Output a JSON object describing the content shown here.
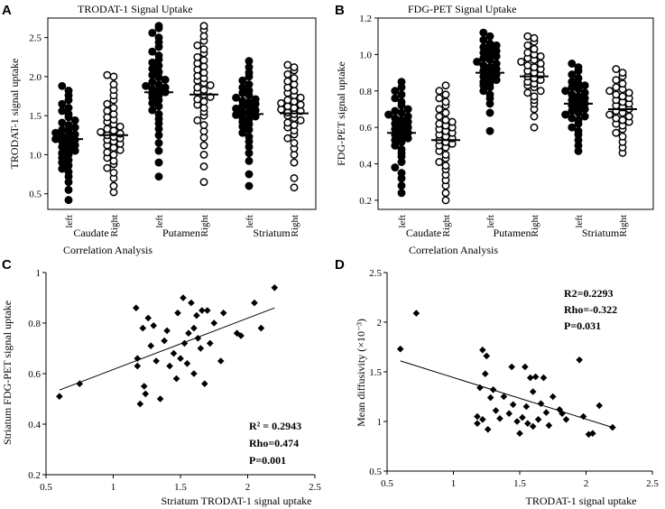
{
  "figure": {
    "panels": [
      {
        "letter": "A",
        "title": "TRODAT-1 Signal Uptake"
      },
      {
        "letter": "B",
        "title": "FDG-PET Signal Uptake"
      },
      {
        "letter": "C",
        "title": "Correlation Analysis"
      },
      {
        "letter": "D",
        "title": "Correlation Analysis"
      }
    ]
  },
  "chart_data": [
    {
      "id": "A",
      "type": "scatter",
      "subtype": "strip",
      "title": "TRODAT-1 Signal Uptake",
      "ylabel": "TRODAT-1 signal uptake",
      "xlabel": "",
      "ylim": [
        0.3,
        2.75
      ],
      "yticks": [
        0.5,
        1.0,
        1.5,
        2.0,
        2.5
      ],
      "ytick_labels": [
        "0.5",
        "1.0",
        "1.5",
        "2.0",
        "2.5"
      ],
      "categories": [
        "left",
        "Right",
        "left",
        "Right",
        "left",
        "Right"
      ],
      "groups": [
        "Caudate",
        "Putamen",
        "Striatum"
      ],
      "series": [
        {
          "name": "Caudate left",
          "filled": true,
          "mean": 1.2,
          "values": [
            0.42,
            0.55,
            0.65,
            0.72,
            0.78,
            0.82,
            0.86,
            0.9,
            0.93,
            0.96,
            1.0,
            1.02,
            1.05,
            1.07,
            1.1,
            1.12,
            1.15,
            1.17,
            1.19,
            1.2,
            1.22,
            1.24,
            1.26,
            1.28,
            1.3,
            1.32,
            1.35,
            1.38,
            1.41,
            1.44,
            1.48,
            1.52,
            1.56,
            1.6,
            1.65,
            1.7,
            1.76,
            1.82,
            1.88
          ]
        },
        {
          "name": "Caudate Right",
          "filled": false,
          "mean": 1.25,
          "values": [
            0.52,
            0.6,
            0.7,
            0.77,
            0.83,
            0.88,
            0.92,
            0.96,
            1.0,
            1.03,
            1.06,
            1.09,
            1.12,
            1.14,
            1.17,
            1.19,
            1.21,
            1.23,
            1.25,
            1.27,
            1.29,
            1.31,
            1.33,
            1.36,
            1.39,
            1.42,
            1.45,
            1.48,
            1.52,
            1.56,
            1.6,
            1.65,
            1.7,
            1.76,
            1.83,
            1.9,
            2.0,
            2.02
          ]
        },
        {
          "name": "Putamen left",
          "filled": true,
          "mean": 1.8,
          "values": [
            0.72,
            0.9,
            1.05,
            1.15,
            1.25,
            1.33,
            1.4,
            1.46,
            1.52,
            1.57,
            1.62,
            1.66,
            1.7,
            1.73,
            1.76,
            1.78,
            1.8,
            1.82,
            1.84,
            1.86,
            1.88,
            1.9,
            1.93,
            1.96,
            1.99,
            2.02,
            2.06,
            2.1,
            2.14,
            2.18,
            2.22,
            2.27,
            2.32,
            2.38,
            2.44,
            2.5,
            2.56,
            2.62,
            2.65
          ]
        },
        {
          "name": "Putamen Right",
          "filled": false,
          "mean": 1.77,
          "values": [
            0.65,
            0.85,
            1.0,
            1.12,
            1.22,
            1.3,
            1.38,
            1.44,
            1.5,
            1.55,
            1.6,
            1.64,
            1.68,
            1.71,
            1.74,
            1.77,
            1.8,
            1.83,
            1.86,
            1.89,
            1.92,
            1.95,
            1.98,
            2.01,
            2.05,
            2.09,
            2.13,
            2.17,
            2.21,
            2.25,
            2.3,
            2.35,
            2.4,
            2.46,
            2.52,
            2.6,
            2.65
          ]
        },
        {
          "name": "Striatum left",
          "filled": true,
          "mean": 1.52,
          "values": [
            0.6,
            0.75,
            0.92,
            1.02,
            1.1,
            1.17,
            1.23,
            1.28,
            1.32,
            1.36,
            1.39,
            1.42,
            1.45,
            1.47,
            1.49,
            1.51,
            1.53,
            1.55,
            1.57,
            1.59,
            1.61,
            1.63,
            1.65,
            1.67,
            1.69,
            1.71,
            1.73,
            1.76,
            1.79,
            1.82,
            1.86,
            1.9,
            1.95,
            2.0,
            2.05,
            2.12,
            2.2
          ]
        },
        {
          "name": "Striatum Right",
          "filled": false,
          "mean": 1.53,
          "values": [
            0.58,
            0.7,
            0.9,
            1.0,
            1.08,
            1.15,
            1.21,
            1.26,
            1.31,
            1.35,
            1.38,
            1.41,
            1.44,
            1.47,
            1.5,
            1.52,
            1.54,
            1.56,
            1.58,
            1.6,
            1.62,
            1.64,
            1.66,
            1.68,
            1.7,
            1.73,
            1.76,
            1.79,
            1.82,
            1.86,
            1.9,
            1.94,
            1.98,
            2.03,
            2.08,
            2.12,
            2.15
          ]
        }
      ]
    },
    {
      "id": "B",
      "type": "scatter",
      "subtype": "strip",
      "title": "FDG-PET Signal Uptake",
      "ylabel": "FDG-PET signal uptake",
      "xlabel": "",
      "ylim": [
        0.15,
        1.2
      ],
      "yticks": [
        0.2,
        0.4,
        0.6,
        0.8,
        1.0,
        1.2
      ],
      "ytick_labels": [
        "0.2",
        "0.4",
        "0.6",
        "0.8",
        "1.0",
        "1.2"
      ],
      "categories": [
        "left",
        "Right",
        "left",
        "Right",
        "left",
        "Right"
      ],
      "groups": [
        "Caudate",
        "Putamen",
        "Striatum"
      ],
      "series": [
        {
          "name": "Caudate left",
          "filled": true,
          "mean": 0.57,
          "values": [
            0.24,
            0.28,
            0.32,
            0.35,
            0.38,
            0.41,
            0.44,
            0.46,
            0.48,
            0.5,
            0.52,
            0.53,
            0.54,
            0.55,
            0.56,
            0.57,
            0.58,
            0.59,
            0.6,
            0.61,
            0.62,
            0.63,
            0.64,
            0.65,
            0.66,
            0.67,
            0.68,
            0.69,
            0.7,
            0.72,
            0.74,
            0.76,
            0.78,
            0.8,
            0.82,
            0.85
          ]
        },
        {
          "name": "Caudate Right",
          "filled": false,
          "mean": 0.53,
          "values": [
            0.2,
            0.24,
            0.28,
            0.31,
            0.34,
            0.37,
            0.39,
            0.41,
            0.43,
            0.45,
            0.47,
            0.49,
            0.5,
            0.51,
            0.52,
            0.53,
            0.54,
            0.55,
            0.56,
            0.57,
            0.58,
            0.59,
            0.6,
            0.61,
            0.62,
            0.63,
            0.64,
            0.66,
            0.68,
            0.7,
            0.72,
            0.74,
            0.76,
            0.78,
            0.8,
            0.83
          ]
        },
        {
          "name": "Putamen left",
          "filled": true,
          "mean": 0.9,
          "values": [
            0.58,
            0.68,
            0.73,
            0.76,
            0.78,
            0.8,
            0.82,
            0.83,
            0.84,
            0.85,
            0.86,
            0.87,
            0.88,
            0.89,
            0.9,
            0.91,
            0.92,
            0.93,
            0.94,
            0.95,
            0.96,
            0.97,
            0.98,
            0.99,
            1.0,
            1.01,
            1.02,
            1.03,
            1.04,
            1.05,
            1.06,
            1.08,
            1.1,
            1.12
          ]
        },
        {
          "name": "Putamen Right",
          "filled": false,
          "mean": 0.88,
          "values": [
            0.6,
            0.66,
            0.7,
            0.73,
            0.75,
            0.77,
            0.79,
            0.8,
            0.82,
            0.83,
            0.84,
            0.85,
            0.86,
            0.87,
            0.88,
            0.89,
            0.9,
            0.91,
            0.92,
            0.93,
            0.94,
            0.95,
            0.96,
            0.97,
            0.98,
            0.99,
            1.0,
            1.01,
            1.03,
            1.05,
            1.07,
            1.09,
            1.1
          ]
        },
        {
          "name": "Striatum left",
          "filled": true,
          "mean": 0.73,
          "values": [
            0.47,
            0.5,
            0.53,
            0.56,
            0.58,
            0.6,
            0.62,
            0.64,
            0.65,
            0.66,
            0.67,
            0.68,
            0.69,
            0.7,
            0.71,
            0.72,
            0.73,
            0.74,
            0.75,
            0.76,
            0.77,
            0.78,
            0.79,
            0.8,
            0.81,
            0.82,
            0.83,
            0.84,
            0.85,
            0.87,
            0.89,
            0.91,
            0.93,
            0.95
          ]
        },
        {
          "name": "Striatum Right",
          "filled": false,
          "mean": 0.7,
          "values": [
            0.46,
            0.49,
            0.52,
            0.55,
            0.57,
            0.59,
            0.61,
            0.62,
            0.63,
            0.64,
            0.65,
            0.66,
            0.67,
            0.68,
            0.69,
            0.7,
            0.71,
            0.72,
            0.73,
            0.74,
            0.75,
            0.76,
            0.77,
            0.78,
            0.79,
            0.8,
            0.81,
            0.82,
            0.84,
            0.86,
            0.88,
            0.9,
            0.92
          ]
        }
      ]
    },
    {
      "id": "C",
      "type": "scatter",
      "title": "Correlation Analysis",
      "xlabel": "Striatum TRODAT-1 signal uptake",
      "ylabel": "Striatum FDG-PET signal uptake",
      "xlim": [
        0.5,
        2.5
      ],
      "ylim": [
        0.2,
        1.0
      ],
      "xticks": [
        0.5,
        1,
        1.5,
        2,
        2.5
      ],
      "xtick_labels": [
        "0.5",
        "1",
        "1.5",
        "2",
        "2.5"
      ],
      "yticks": [
        0.2,
        0.4,
        0.6,
        0.8,
        1.0
      ],
      "ytick_labels": [
        "0.2",
        "0.4",
        "0.6",
        "0.8",
        "1"
      ],
      "points": [
        [
          0.6,
          0.51
        ],
        [
          0.75,
          0.56
        ],
        [
          1.17,
          0.86
        ],
        [
          1.18,
          0.66
        ],
        [
          1.18,
          0.63
        ],
        [
          1.2,
          0.48
        ],
        [
          1.22,
          0.78
        ],
        [
          1.23,
          0.55
        ],
        [
          1.24,
          0.52
        ],
        [
          1.26,
          0.82
        ],
        [
          1.28,
          0.71
        ],
        [
          1.3,
          0.79
        ],
        [
          1.32,
          0.65
        ],
        [
          1.35,
          0.5
        ],
        [
          1.38,
          0.73
        ],
        [
          1.4,
          0.77
        ],
        [
          1.42,
          0.63
        ],
        [
          1.45,
          0.68
        ],
        [
          1.47,
          0.58
        ],
        [
          1.48,
          0.84
        ],
        [
          1.5,
          0.66
        ],
        [
          1.52,
          0.9
        ],
        [
          1.53,
          0.72
        ],
        [
          1.55,
          0.64
        ],
        [
          1.56,
          0.76
        ],
        [
          1.58,
          0.88
        ],
        [
          1.6,
          0.78
        ],
        [
          1.6,
          0.6
        ],
        [
          1.62,
          0.83
        ],
        [
          1.63,
          0.74
        ],
        [
          1.65,
          0.7
        ],
        [
          1.66,
          0.85
        ],
        [
          1.68,
          0.56
        ],
        [
          1.7,
          0.85
        ],
        [
          1.72,
          0.72
        ],
        [
          1.75,
          0.8
        ],
        [
          1.8,
          0.65
        ],
        [
          1.82,
          0.84
        ],
        [
          1.92,
          0.76
        ],
        [
          1.95,
          0.75
        ],
        [
          2.05,
          0.88
        ],
        [
          2.1,
          0.78
        ],
        [
          2.2,
          0.94
        ]
      ],
      "fit_line": {
        "x": [
          0.6,
          2.2
        ],
        "y": [
          0.535,
          0.86
        ]
      },
      "annotations": [
        "R² = 0.2943",
        "Rho=0.474",
        "P=0.001"
      ]
    },
    {
      "id": "D",
      "type": "scatter",
      "title": "Correlation Analysis",
      "xlabel": "TRODAT-1 signal uptake",
      "ylabel": "Mean diffusivity (×10⁻³)",
      "xlim": [
        0.5,
        2.5
      ],
      "ylim": [
        0.5,
        2.5
      ],
      "xticks": [
        0.5,
        1,
        1.5,
        2,
        2.5
      ],
      "xtick_labels": [
        "0.5",
        "1",
        "1.5",
        "2",
        "2.5"
      ],
      "yticks": [
        0.5,
        1,
        1.5,
        2,
        2.5
      ],
      "ytick_labels": [
        "0.5",
        "1",
        "1.5",
        "2",
        "2.5"
      ],
      "points": [
        [
          0.6,
          1.73
        ],
        [
          0.72,
          2.09
        ],
        [
          1.18,
          1.05
        ],
        [
          1.18,
          0.98
        ],
        [
          1.2,
          1.34
        ],
        [
          1.22,
          1.72
        ],
        [
          1.22,
          1.02
        ],
        [
          1.24,
          1.48
        ],
        [
          1.25,
          1.66
        ],
        [
          1.26,
          0.92
        ],
        [
          1.28,
          1.24
        ],
        [
          1.3,
          1.32
        ],
        [
          1.32,
          1.11
        ],
        [
          1.35,
          1.03
        ],
        [
          1.38,
          1.25
        ],
        [
          1.42,
          1.08
        ],
        [
          1.44,
          1.55
        ],
        [
          1.45,
          1.17
        ],
        [
          1.48,
          1.0
        ],
        [
          1.5,
          0.88
        ],
        [
          1.52,
          1.04
        ],
        [
          1.54,
          1.55
        ],
        [
          1.55,
          1.15
        ],
        [
          1.56,
          0.98
        ],
        [
          1.58,
          1.44
        ],
        [
          1.6,
          1.3
        ],
        [
          1.6,
          0.95
        ],
        [
          1.62,
          1.45
        ],
        [
          1.64,
          1.02
        ],
        [
          1.66,
          1.18
        ],
        [
          1.68,
          1.44
        ],
        [
          1.7,
          1.09
        ],
        [
          1.72,
          0.96
        ],
        [
          1.75,
          1.25
        ],
        [
          1.8,
          1.12
        ],
        [
          1.82,
          1.08
        ],
        [
          1.85,
          1.02
        ],
        [
          1.95,
          1.62
        ],
        [
          1.98,
          1.05
        ],
        [
          2.02,
          0.87
        ],
        [
          2.05,
          0.88
        ],
        [
          2.1,
          1.16
        ],
        [
          2.2,
          0.94
        ]
      ],
      "fit_line": {
        "x": [
          0.6,
          2.2
        ],
        "y": [
          1.61,
          0.94
        ]
      },
      "annotations": [
        "R2=0.2293",
        "Rho=-0.322",
        "P=0.031"
      ]
    }
  ]
}
